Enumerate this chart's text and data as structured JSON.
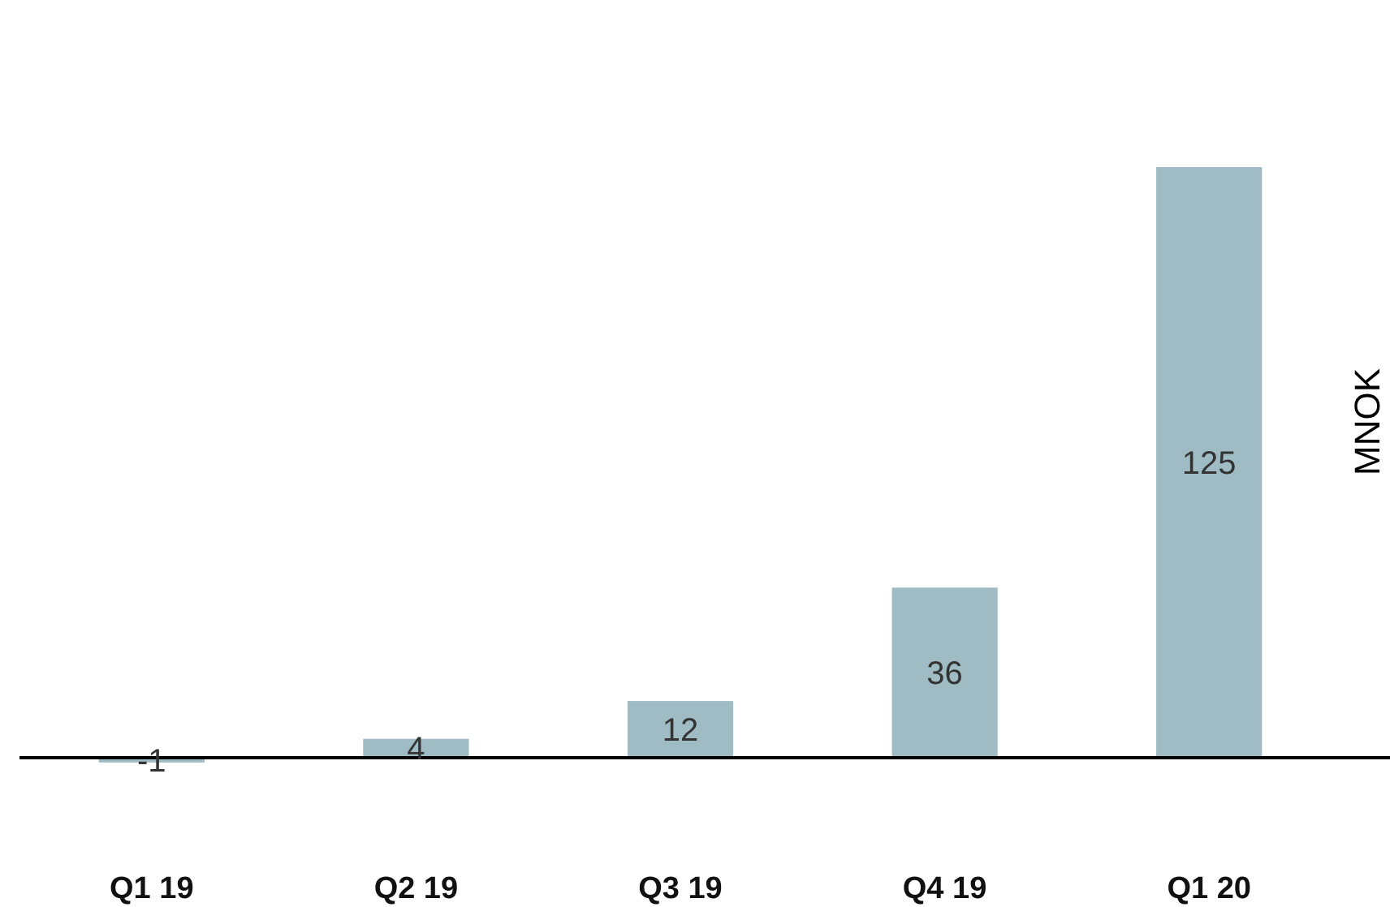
{
  "chart_data": {
    "type": "bar",
    "categories": [
      "Q1 19",
      "Q2 19",
      "Q3 19",
      "Q4 19",
      "Q1 20"
    ],
    "values": [
      -1,
      4,
      12,
      36,
      125
    ],
    "color": "#9fbbc4",
    "ylabel": "MNOK",
    "data_labels": true
  }
}
